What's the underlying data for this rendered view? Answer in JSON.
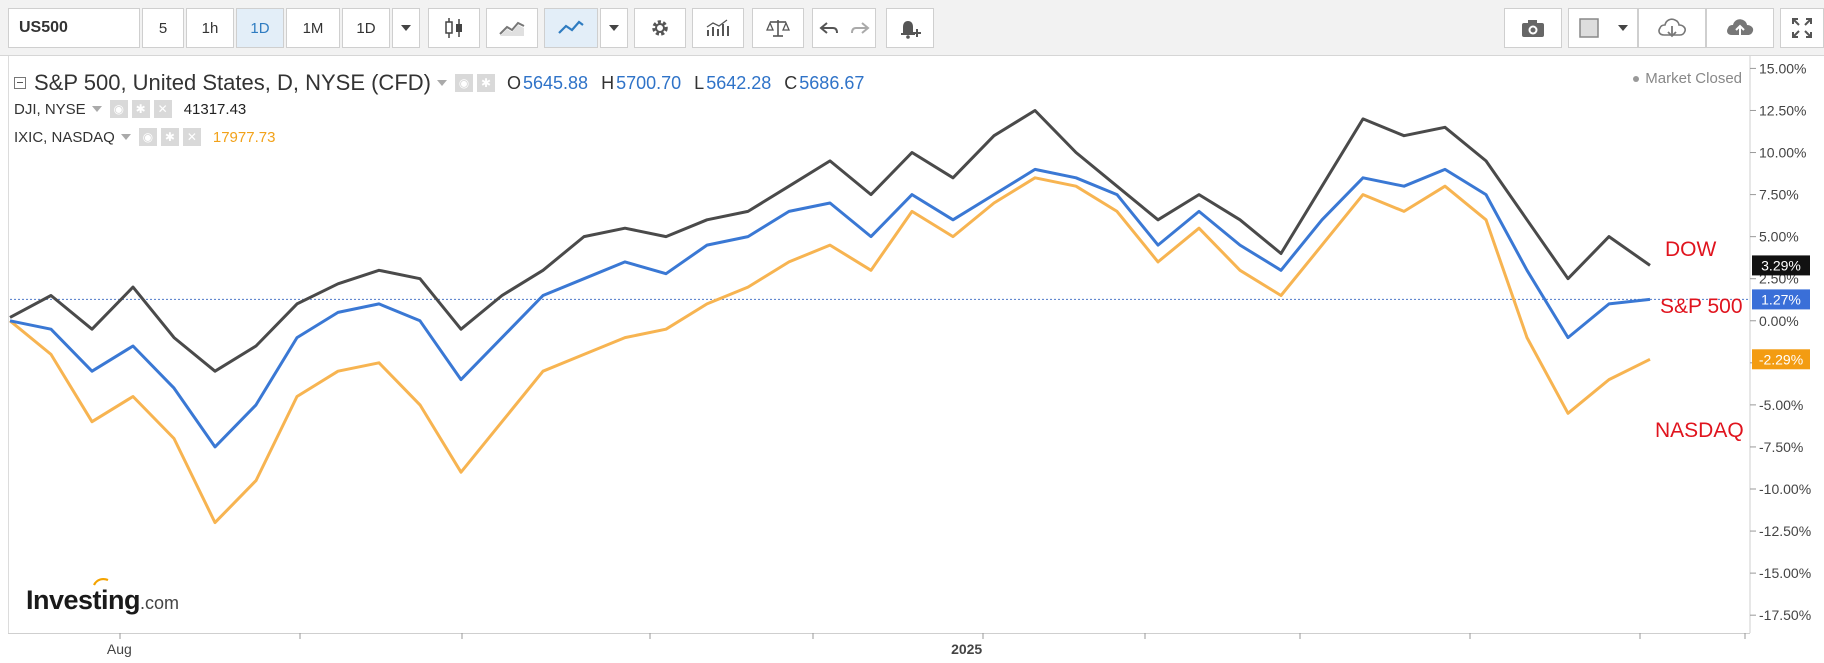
{
  "toolbar": {
    "symbol": "US500",
    "intervals": [
      "5",
      "1h",
      "1D",
      "1M",
      "1D"
    ],
    "active_interval": "1D",
    "icons": [
      "candlestick-icon",
      "line-chart-icon",
      "compare-line-icon",
      "settings-gear-icon",
      "indicators-icon",
      "scales-icon",
      "undo-icon",
      "redo-icon",
      "alert-bell-icon",
      "camera-icon",
      "layout-square-icon",
      "cloud-download-icon",
      "cloud-upload-icon",
      "fullscreen-icon"
    ]
  },
  "legend": {
    "main_title": "S&P 500, United States, D, NYSE (CFD)",
    "open_label": "O",
    "open": "5645.88",
    "high_label": "H",
    "high": "5700.70",
    "low_label": "L",
    "low": "5642.28",
    "close_label": "C",
    "close": "5686.67",
    "dji_title": "DJI, NYSE",
    "dji_value": "41317.43",
    "ixic_title": "IXIC, NASDAQ",
    "ixic_value": "17977.73"
  },
  "status": {
    "market": "Market Closed"
  },
  "branding": {
    "logo_text": "Investing",
    "logo_suffix": ".com"
  },
  "chart_data": {
    "type": "line",
    "x": [
      0,
      6,
      12,
      18,
      24,
      30,
      36,
      42,
      48,
      54,
      60,
      66,
      72,
      78,
      84,
      90,
      96,
      102,
      108,
      114,
      120,
      126,
      132,
      138,
      144,
      150,
      156,
      162,
      168,
      174,
      180,
      186,
      192,
      198,
      204,
      210,
      216,
      222,
      228,
      234,
      240
    ],
    "x_ticks": [
      {
        "x": 16,
        "label": "Aug"
      },
      {
        "x": 140,
        "label": "2025"
      }
    ],
    "ylim": [
      -18.5,
      15.5
    ],
    "y_ticks": [
      "15.00%",
      "12.50%",
      "10.00%",
      "7.50%",
      "5.00%",
      "2.50%",
      "0.00%",
      "-2.50%",
      "-5.00%",
      "-7.50%",
      "-10.00%",
      "-12.50%",
      "-15.00%",
      "-17.50%"
    ],
    "y_tick_values": [
      15,
      12.5,
      10,
      7.5,
      5,
      2.5,
      0,
      -2.5,
      -5,
      -7.5,
      -10,
      -12.5,
      -15,
      -17.5
    ],
    "reference_line": 1.27,
    "series": [
      {
        "name": "DOW",
        "color": "#4a4a4a",
        "end_label": "3.29%",
        "badge_color": "#111111",
        "values": [
          0.2,
          1.5,
          -0.5,
          2.0,
          -1.0,
          -3.0,
          -1.5,
          1.0,
          2.2,
          3.0,
          2.5,
          -0.5,
          1.5,
          3.0,
          5.0,
          5.5,
          5.0,
          6.0,
          6.5,
          8.0,
          9.5,
          7.5,
          10.0,
          8.5,
          11.0,
          12.5,
          10.0,
          8.0,
          6.0,
          7.5,
          6.0,
          4.0,
          8.0,
          12.0,
          11.0,
          11.5,
          9.5,
          6.0,
          2.5,
          5.0,
          3.29
        ]
      },
      {
        "name": "S&P 500",
        "color": "#3a78d4",
        "end_label": "1.27%",
        "badge_color": "#3a6fd8",
        "values": [
          0.0,
          -0.5,
          -3.0,
          -1.5,
          -4.0,
          -7.5,
          -5.0,
          -1.0,
          0.5,
          1.0,
          0.0,
          -3.5,
          -1.0,
          1.5,
          2.5,
          3.5,
          2.8,
          4.5,
          5.0,
          6.5,
          7.0,
          5.0,
          7.5,
          6.0,
          7.5,
          9.0,
          8.5,
          7.5,
          4.5,
          6.5,
          4.5,
          3.0,
          6.0,
          8.5,
          8.0,
          9.0,
          7.5,
          3.0,
          -1.0,
          1.0,
          1.27
        ]
      },
      {
        "name": "NASDAQ",
        "color": "#f7b451",
        "end_label": "-2.29%",
        "badge_color": "#f39c12",
        "values": [
          0.0,
          -2.0,
          -6.0,
          -4.5,
          -7.0,
          -12.0,
          -9.5,
          -4.5,
          -3.0,
          -2.5,
          -5.0,
          -9.0,
          -6.0,
          -3.0,
          -2.0,
          -1.0,
          -0.5,
          1.0,
          2.0,
          3.5,
          4.5,
          3.0,
          6.5,
          5.0,
          7.0,
          8.5,
          8.0,
          6.5,
          3.5,
          5.5,
          3.0,
          1.5,
          4.5,
          7.5,
          6.5,
          8.0,
          6.0,
          -1.0,
          -5.5,
          -3.5,
          -2.29
        ]
      }
    ]
  }
}
